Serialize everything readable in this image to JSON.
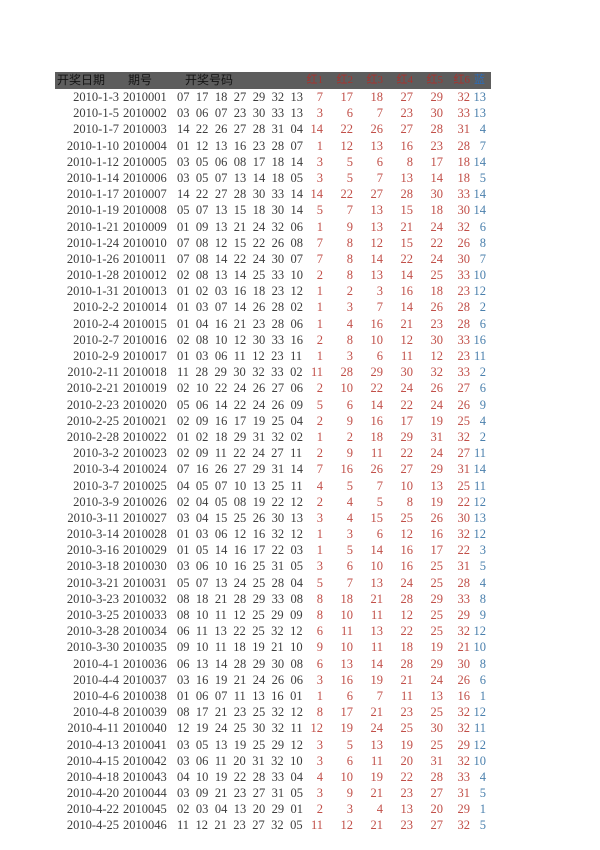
{
  "page": {
    "background": "#ffffff"
  },
  "colors": {
    "header_bg": "#5d5d5d",
    "header_text": "#141414",
    "header_red": "#a8332e",
    "header_blue": "#2f6cb3",
    "body_text": "#3c3c3c",
    "red_number": "#c14f48",
    "blue_number": "#4b80ad"
  },
  "table": {
    "header": {
      "date_label": "开奖日期",
      "issue_label": "期号",
      "balls_label": "开奖号码",
      "red_labels": [
        "红1",
        "红2",
        "红3",
        "红4",
        "红5",
        "红6"
      ],
      "blue_label": "蓝"
    },
    "rows": [
      {
        "date": "2010-1-3",
        "issue": "2010001",
        "balls": "07 17 18 27 29 32 13",
        "reds": [
          "7",
          "17",
          "18",
          "27",
          "29",
          "32"
        ],
        "blue": "13"
      },
      {
        "date": "2010-1-5",
        "issue": "2010002",
        "balls": "03 06 07 23 30 33 13",
        "reds": [
          "3",
          "6",
          "7",
          "23",
          "30",
          "33"
        ],
        "blue": "13"
      },
      {
        "date": "2010-1-7",
        "issue": "2010003",
        "balls": "14 22 26 27 28 31 04",
        "reds": [
          "14",
          "22",
          "26",
          "27",
          "28",
          "31"
        ],
        "blue": "4"
      },
      {
        "date": "2010-1-10",
        "issue": "2010004",
        "balls": "01 12 13 16 23 28 07",
        "reds": [
          "1",
          "12",
          "13",
          "16",
          "23",
          "28"
        ],
        "blue": "7"
      },
      {
        "date": "2010-1-12",
        "issue": "2010005",
        "balls": "03 05 06 08 17 18 14",
        "reds": [
          "3",
          "5",
          "6",
          "8",
          "17",
          "18"
        ],
        "blue": "14"
      },
      {
        "date": "2010-1-14",
        "issue": "2010006",
        "balls": "03 05 07 13 14 18 05",
        "reds": [
          "3",
          "5",
          "7",
          "13",
          "14",
          "18"
        ],
        "blue": "5"
      },
      {
        "date": "2010-1-17",
        "issue": "2010007",
        "balls": "14 22 27 28 30 33 14",
        "reds": [
          "14",
          "22",
          "27",
          "28",
          "30",
          "33"
        ],
        "blue": "14"
      },
      {
        "date": "2010-1-19",
        "issue": "2010008",
        "balls": "05 07 13 15 18 30 14",
        "reds": [
          "5",
          "7",
          "13",
          "15",
          "18",
          "30"
        ],
        "blue": "14"
      },
      {
        "date": "2010-1-21",
        "issue": "2010009",
        "balls": "01 09 13 21 24 32 06",
        "reds": [
          "1",
          "9",
          "13",
          "21",
          "24",
          "32"
        ],
        "blue": "6"
      },
      {
        "date": "2010-1-24",
        "issue": "2010010",
        "balls": "07 08 12 15 22 26 08",
        "reds": [
          "7",
          "8",
          "12",
          "15",
          "22",
          "26"
        ],
        "blue": "8"
      },
      {
        "date": "2010-1-26",
        "issue": "2010011",
        "balls": "07 08 14 22 24 30 07",
        "reds": [
          "7",
          "8",
          "14",
          "22",
          "24",
          "30"
        ],
        "blue": "7"
      },
      {
        "date": "2010-1-28",
        "issue": "2010012",
        "balls": "02 08 13 14 25 33 10",
        "reds": [
          "2",
          "8",
          "13",
          "14",
          "25",
          "33"
        ],
        "blue": "10"
      },
      {
        "date": "2010-1-31",
        "issue": "2010013",
        "balls": "01 02 03 16 18 23 12",
        "reds": [
          "1",
          "2",
          "3",
          "16",
          "18",
          "23"
        ],
        "blue": "12"
      },
      {
        "date": "2010-2-2",
        "issue": "2010014",
        "balls": "01 03 07 14 26 28 02",
        "reds": [
          "1",
          "3",
          "7",
          "14",
          "26",
          "28"
        ],
        "blue": "2"
      },
      {
        "date": "2010-2-4",
        "issue": "2010015",
        "balls": "01 04 16 21 23 28 06",
        "reds": [
          "1",
          "4",
          "16",
          "21",
          "23",
          "28"
        ],
        "blue": "6"
      },
      {
        "date": "2010-2-7",
        "issue": "2010016",
        "balls": "02 08 10 12 30 33 16",
        "reds": [
          "2",
          "8",
          "10",
          "12",
          "30",
          "33"
        ],
        "blue": "16"
      },
      {
        "date": "2010-2-9",
        "issue": "2010017",
        "balls": "01 03 06 11 12 23 11",
        "reds": [
          "1",
          "3",
          "6",
          "11",
          "12",
          "23"
        ],
        "blue": "11"
      },
      {
        "date": "2010-2-11",
        "issue": "2010018",
        "balls": "11 28 29 30 32 33 02",
        "reds": [
          "11",
          "28",
          "29",
          "30",
          "32",
          "33"
        ],
        "blue": "2"
      },
      {
        "date": "2010-2-21",
        "issue": "2010019",
        "balls": "02 10 22 24 26 27 06",
        "reds": [
          "2",
          "10",
          "22",
          "24",
          "26",
          "27"
        ],
        "blue": "6"
      },
      {
        "date": "2010-2-23",
        "issue": "2010020",
        "balls": "05 06 14 22 24 26 09",
        "reds": [
          "5",
          "6",
          "14",
          "22",
          "24",
          "26"
        ],
        "blue": "9"
      },
      {
        "date": "2010-2-25",
        "issue": "2010021",
        "balls": "02 09 16 17 19 25 04",
        "reds": [
          "2",
          "9",
          "16",
          "17",
          "19",
          "25"
        ],
        "blue": "4"
      },
      {
        "date": "2010-2-28",
        "issue": "2010022",
        "balls": "01 02 18 29 31 32 02",
        "reds": [
          "1",
          "2",
          "18",
          "29",
          "31",
          "32"
        ],
        "blue": "2"
      },
      {
        "date": "2010-3-2",
        "issue": "2010023",
        "balls": "02 09 11 22 24 27 11",
        "reds": [
          "2",
          "9",
          "11",
          "22",
          "24",
          "27"
        ],
        "blue": "11"
      },
      {
        "date": "2010-3-4",
        "issue": "2010024",
        "balls": "07 16 26 27 29 31 14",
        "reds": [
          "7",
          "16",
          "26",
          "27",
          "29",
          "31"
        ],
        "blue": "14"
      },
      {
        "date": "2010-3-7",
        "issue": "2010025",
        "balls": "04 05 07 10 13 25 11",
        "reds": [
          "4",
          "5",
          "7",
          "10",
          "13",
          "25"
        ],
        "blue": "11"
      },
      {
        "date": "2010-3-9",
        "issue": "2010026",
        "balls": "02 04 05 08 19 22 12",
        "reds": [
          "2",
          "4",
          "5",
          "8",
          "19",
          "22"
        ],
        "blue": "12"
      },
      {
        "date": "2010-3-11",
        "issue": "2010027",
        "balls": "03 04 15 25 26 30 13",
        "reds": [
          "3",
          "4",
          "15",
          "25",
          "26",
          "30"
        ],
        "blue": "13"
      },
      {
        "date": "2010-3-14",
        "issue": "2010028",
        "balls": "01 03 06 12 16 32 12",
        "reds": [
          "1",
          "3",
          "6",
          "12",
          "16",
          "32"
        ],
        "blue": "12"
      },
      {
        "date": "2010-3-16",
        "issue": "2010029",
        "balls": "01 05 14 16 17 22 03",
        "reds": [
          "1",
          "5",
          "14",
          "16",
          "17",
          "22"
        ],
        "blue": "3"
      },
      {
        "date": "2010-3-18",
        "issue": "2010030",
        "balls": "03 06 10 16 25 31 05",
        "reds": [
          "3",
          "6",
          "10",
          "16",
          "25",
          "31"
        ],
        "blue": "5"
      },
      {
        "date": "2010-3-21",
        "issue": "2010031",
        "balls": "05 07 13 24 25 28 04",
        "reds": [
          "5",
          "7",
          "13",
          "24",
          "25",
          "28"
        ],
        "blue": "4"
      },
      {
        "date": "2010-3-23",
        "issue": "2010032",
        "balls": "08 18 21 28 29 33 08",
        "reds": [
          "8",
          "18",
          "21",
          "28",
          "29",
          "33"
        ],
        "blue": "8"
      },
      {
        "date": "2010-3-25",
        "issue": "2010033",
        "balls": "08 10 11 12 25 29 09",
        "reds": [
          "8",
          "10",
          "11",
          "12",
          "25",
          "29"
        ],
        "blue": "9"
      },
      {
        "date": "2010-3-28",
        "issue": "2010034",
        "balls": "06 11 13 22 25 32 12",
        "reds": [
          "6",
          "11",
          "13",
          "22",
          "25",
          "32"
        ],
        "blue": "12"
      },
      {
        "date": "2010-3-30",
        "issue": "2010035",
        "balls": "09 10 11 18 19 21 10",
        "reds": [
          "9",
          "10",
          "11",
          "18",
          "19",
          "21"
        ],
        "blue": "10"
      },
      {
        "date": "2010-4-1",
        "issue": "2010036",
        "balls": "06 13 14 28 29 30 08",
        "reds": [
          "6",
          "13",
          "14",
          "28",
          "29",
          "30"
        ],
        "blue": "8"
      },
      {
        "date": "2010-4-4",
        "issue": "2010037",
        "balls": "03 16 19 21 24 26 06",
        "reds": [
          "3",
          "16",
          "19",
          "21",
          "24",
          "26"
        ],
        "blue": "6"
      },
      {
        "date": "2010-4-6",
        "issue": "2010038",
        "balls": "01 06 07 11 13 16 01",
        "reds": [
          "1",
          "6",
          "7",
          "11",
          "13",
          "16"
        ],
        "blue": "1"
      },
      {
        "date": "2010-4-8",
        "issue": "2010039",
        "balls": "08 17 21 23 25 32 12",
        "reds": [
          "8",
          "17",
          "21",
          "23",
          "25",
          "32"
        ],
        "blue": "12"
      },
      {
        "date": "2010-4-11",
        "issue": "2010040",
        "balls": "12 19 24 25 30 32 11",
        "reds": [
          "12",
          "19",
          "24",
          "25",
          "30",
          "32"
        ],
        "blue": "11"
      },
      {
        "date": "2010-4-13",
        "issue": "2010041",
        "balls": "03 05 13 19 25 29 12",
        "reds": [
          "3",
          "5",
          "13",
          "19",
          "25",
          "29"
        ],
        "blue": "12"
      },
      {
        "date": "2010-4-15",
        "issue": "2010042",
        "balls": "03 06 11 20 31 32 10",
        "reds": [
          "3",
          "6",
          "11",
          "20",
          "31",
          "32"
        ],
        "blue": "10"
      },
      {
        "date": "2010-4-18",
        "issue": "2010043",
        "balls": "04 10 19 22 28 33 04",
        "reds": [
          "4",
          "10",
          "19",
          "22",
          "28",
          "33"
        ],
        "blue": "4"
      },
      {
        "date": "2010-4-20",
        "issue": "2010044",
        "balls": "03 09 21 23 27 31 05",
        "reds": [
          "3",
          "9",
          "21",
          "23",
          "27",
          "31"
        ],
        "blue": "5"
      },
      {
        "date": "2010-4-22",
        "issue": "2010045",
        "balls": "02 03 04 13 20 29 01",
        "reds": [
          "2",
          "3",
          "4",
          "13",
          "20",
          "29"
        ],
        "blue": "1"
      },
      {
        "date": "2010-4-25",
        "issue": "2010046",
        "balls": "11 12 21 23 27 32 05",
        "reds": [
          "11",
          "12",
          "21",
          "23",
          "27",
          "32"
        ],
        "blue": "5"
      }
    ]
  }
}
